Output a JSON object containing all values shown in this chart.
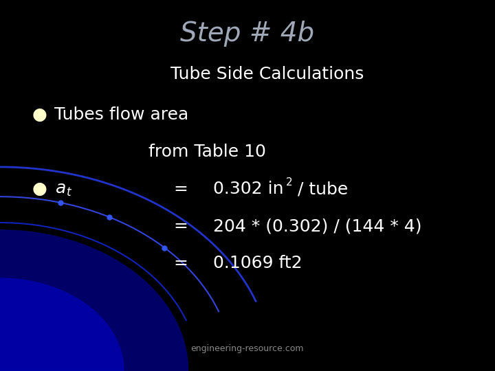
{
  "title": "Step # 4b",
  "title_color": "#a0a8b8",
  "title_fontsize": 28,
  "background_color": "#000000",
  "text_color": "#ffffff",
  "subtitle": "Tube Side Calculations",
  "subtitle_fontsize": 18,
  "bullet_color": "#ffffcc",
  "footer": "engineering-resource.com",
  "footer_fontsize": 9,
  "footer_color": "#888888",
  "content_fontsize": 18,
  "arc_color_outer": "#1111aa",
  "arc_color_mid": "#2222cc",
  "arc_color_inner": "#1133bb",
  "glow_color": "#000088"
}
